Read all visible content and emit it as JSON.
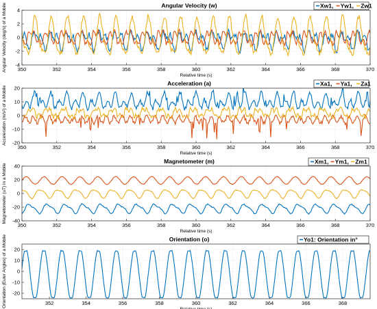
{
  "chart_data": [
    {
      "type": "line",
      "title": "Angular Velocity (w)",
      "xlabel": "Relative time (s)",
      "ylabel": "Angular Velocity (deg/s) of a Mobile",
      "xlim": [
        350,
        370
      ],
      "ylim": [
        -4,
        4
      ],
      "xticks": [
        350,
        352,
        354,
        356,
        358,
        360,
        362,
        364,
        366,
        368,
        370
      ],
      "yticks": [
        -4,
        -2,
        0,
        2,
        4
      ],
      "grid": true,
      "legend_position": "top-right",
      "period_s": 0.93,
      "series": [
        {
          "name": "Xw1",
          "color": "#0072BD",
          "values_approx": {
            "mean": 0,
            "min": -2.5,
            "max": 2.0
          }
        },
        {
          "name": "Yw1",
          "color": "#D95319",
          "values_approx": {
            "mean": 0,
            "min": -1.2,
            "max": 1.5
          }
        },
        {
          "name": "Zw1",
          "color": "#EDB120",
          "values_approx": {
            "mean": 0,
            "min": -3.0,
            "max": 3.2
          }
        }
      ]
    },
    {
      "type": "line",
      "title": "Acceleration (a)",
      "xlabel": "Relative time (s)",
      "ylabel": "Acceleration (m/s²) of a Mobile",
      "xlim": [
        350,
        370
      ],
      "ylim": [
        -20,
        20
      ],
      "xticks": [
        350,
        352,
        354,
        356,
        358,
        360,
        362,
        364,
        366,
        368,
        370
      ],
      "yticks": [
        -20,
        -10,
        0,
        10,
        20
      ],
      "grid": true,
      "legend_position": "top-right",
      "period_s": 0.93,
      "series": [
        {
          "name": "Xa1",
          "color": "#0072BD",
          "values_approx": {
            "mean": 10,
            "min": 3,
            "max": 23
          }
        },
        {
          "name": "Ya1",
          "color": "#D95319",
          "values_approx": {
            "mean": -3,
            "min": -18,
            "max": 3
          }
        },
        {
          "name": "Za1",
          "color": "#EDB120",
          "values_approx": {
            "mean": 2,
            "min": -8,
            "max": 10
          }
        }
      ]
    },
    {
      "type": "line",
      "title": "Magnetometer (m)",
      "xlabel": "Relative time (s)",
      "ylabel": "Magnetometer (uT) in a Mobile",
      "xlim": [
        350,
        370
      ],
      "ylim": [
        -40,
        40
      ],
      "xticks": [
        350,
        352,
        354,
        356,
        358,
        360,
        362,
        364,
        366,
        368,
        370
      ],
      "yticks": [
        -40,
        -20,
        0,
        20,
        40
      ],
      "grid": true,
      "legend_position": "top-right",
      "period_s": 1.03,
      "series": [
        {
          "name": "Xm1",
          "color": "#0072BD",
          "values_approx": {
            "mean": -22,
            "min": -32,
            "max": -14
          }
        },
        {
          "name": "Ym1",
          "color": "#D95319",
          "values_approx": {
            "mean": 19,
            "min": 10,
            "max": 26
          }
        },
        {
          "name": "Zm1",
          "color": "#EDB120",
          "values_approx": {
            "mean": 0,
            "min": -9,
            "max": 7
          }
        }
      ]
    },
    {
      "type": "line",
      "title": "Orientation (o)",
      "xlabel": "Relative time (s)",
      "ylabel": "Orientation (Euler Angles) of a Mobile",
      "xlim": [
        350.5,
        369.5
      ],
      "ylim": [
        -25,
        25
      ],
      "xticks": [
        352,
        354,
        356,
        358,
        360,
        362,
        364,
        366,
        368
      ],
      "yticks": [
        -20,
        -10,
        0,
        10,
        20
      ],
      "grid": true,
      "legend_position": "top-right",
      "period_s": 0.99,
      "series": [
        {
          "name": "Yo1: Orientation in°",
          "color": "#0072BD",
          "values_approx": {
            "mean": -3,
            "min": -24,
            "max": 19
          }
        }
      ]
    }
  ]
}
